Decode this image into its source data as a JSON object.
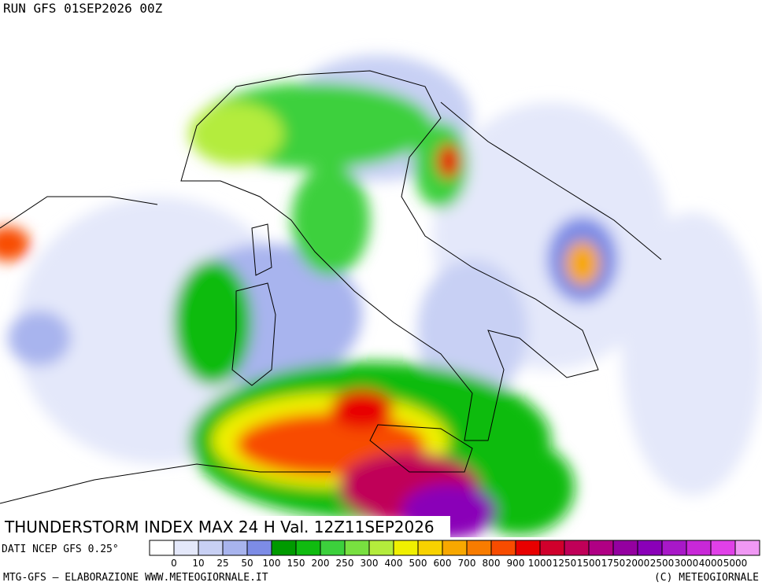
{
  "header": {
    "run": "RUN GFS 01SEP2026 00Z"
  },
  "map": {
    "title": "THUNDERSTORM INDEX MAX 24 H Val. 12Z11SEP2026",
    "source": "DATI NCEP GFS 0.25°"
  },
  "legend": {
    "labels": [
      0,
      10,
      25,
      50,
      100,
      150,
      200,
      250,
      300,
      400,
      500,
      600,
      700,
      800,
      900,
      1000,
      1250,
      1500,
      1750,
      2000,
      2500,
      3000,
      4000,
      5000
    ],
    "colors": [
      "#ffffff",
      "#e4e8fa",
      "#c8d0f4",
      "#a8b4ee",
      "#7d8ce6",
      "#009a00",
      "#10bb10",
      "#3cd03c",
      "#78e040",
      "#b4ec3c",
      "#f0f000",
      "#f8d200",
      "#f8a800",
      "#f87c00",
      "#f84c00",
      "#e80000",
      "#d0002c",
      "#c00058",
      "#b00084",
      "#9400a0",
      "#8a00b8",
      "#a818c8",
      "#c828d8",
      "#e040e8",
      "#f098f4"
    ]
  },
  "footer": {
    "left": "MTG-GFS – ELABORAZIONE WWW.METEOGIORNALE.IT",
    "right": "(C) METEOGIORNALE"
  }
}
